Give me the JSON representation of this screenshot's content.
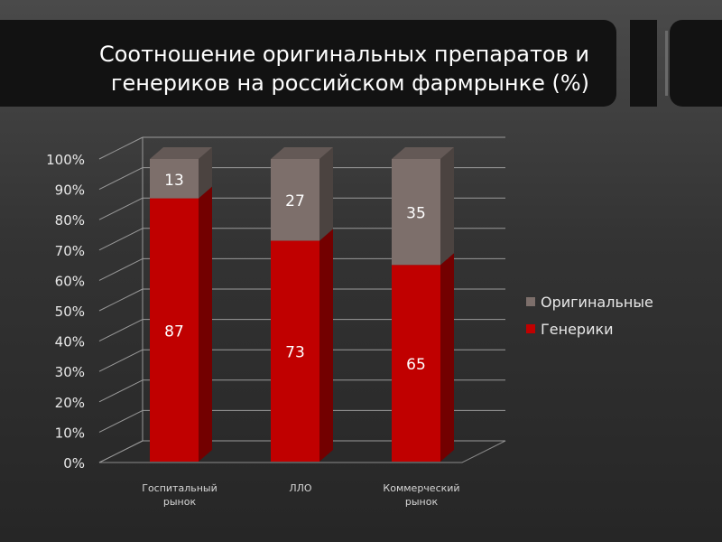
{
  "title": "Соотношение оригинальных препаратов и\nгенериков на российском фармрынке (%)",
  "chart_data": {
    "type": "bar",
    "stacked": true,
    "percent": true,
    "three_d": true,
    "categories": [
      [
        "Госпитальный",
        "рынок"
      ],
      [
        "ЛЛО"
      ],
      [
        "Коммерческий",
        "рынок"
      ]
    ],
    "series": [
      {
        "name": "Генерики",
        "values": [
          87,
          73,
          65
        ],
        "color": "#c00000"
      },
      {
        "name": "Оригинальные",
        "values": [
          13,
          27,
          35
        ],
        "color": "#7d6f6b"
      }
    ],
    "ylim": [
      0,
      100
    ],
    "yticks": [
      "0%",
      "10%",
      "20%",
      "30%",
      "40%",
      "50%",
      "60%",
      "70%",
      "80%",
      "90%",
      "100%"
    ],
    "legend": [
      "Оригинальные",
      "Генерики"
    ],
    "grid": true,
    "legend_position": "right"
  }
}
